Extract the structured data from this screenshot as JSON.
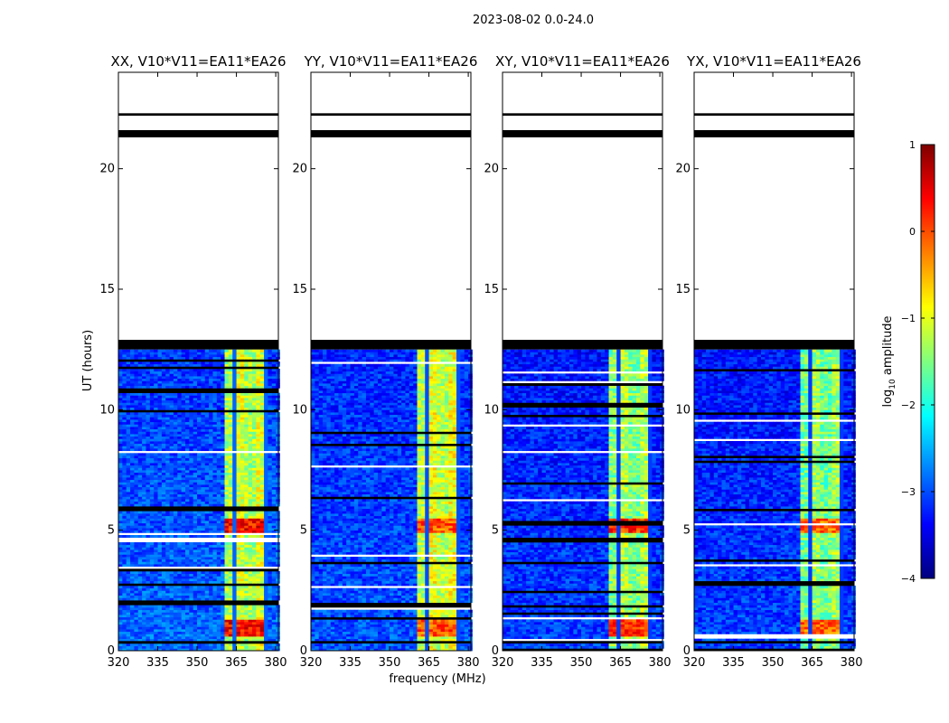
{
  "figure_title": "2023-08-02 0.0-24.0",
  "chart_data": {
    "type": "heatmap",
    "title": "2023-08-02 0.0-24.0",
    "xlabel": "frequency (MHz)",
    "ylabel": "UT (hours)",
    "xlim": [
      320,
      381
    ],
    "ylim": [
      0,
      24
    ],
    "x_ticks": [
      320,
      335,
      350,
      365,
      380
    ],
    "y_ticks": [
      0,
      5,
      10,
      15,
      20
    ],
    "colorbar": {
      "label": "log10 amplitude",
      "label_parts": [
        "log",
        "10",
        " amplitude"
      ],
      "range": [
        -4,
        1
      ],
      "ticks": [
        -4,
        -3,
        -2,
        -1,
        0,
        1
      ],
      "tick_labels": [
        "−4",
        "−3",
        "−2",
        "−1",
        "0",
        "1"
      ],
      "colormap": "jet"
    },
    "data_coverage_hours": [
      0.0,
      12.5
    ],
    "flagged_hour_bands": [
      [
        12.5,
        12.9
      ],
      [
        21.3,
        21.6
      ],
      [
        22.2,
        22.3
      ],
      [
        0.3,
        0.4
      ]
    ],
    "rfi_band_mhz": [
      360,
      376
    ],
    "rfi_bright_hours": [
      [
        0.6,
        1.2
      ],
      [
        4.8,
        5.4
      ]
    ],
    "panels": [
      {
        "title": "XX, V10*V11=EA11*EA26",
        "pol": "XX",
        "background_log_amp": -3.1,
        "band_log_amp": -1.2,
        "peak_log_amp": 0.8
      },
      {
        "title": "YY, V10*V11=EA11*EA26",
        "pol": "YY",
        "background_log_amp": -3.2,
        "band_log_amp": -1.1,
        "peak_log_amp": 0.4
      },
      {
        "title": "XY, V10*V11=EA11*EA26",
        "pol": "XY",
        "background_log_amp": -3.3,
        "band_log_amp": -1.4,
        "peak_log_amp": 0.6
      },
      {
        "title": "YX, V10*V11=EA11*EA26",
        "pol": "YX",
        "background_log_amp": -3.3,
        "band_log_amp": -1.5,
        "peak_log_amp": 0.3
      }
    ]
  }
}
